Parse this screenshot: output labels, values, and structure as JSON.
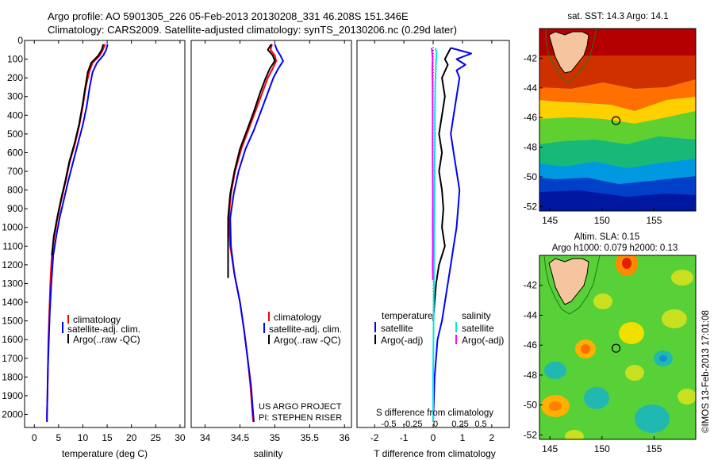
{
  "title_line1": "Argo profile: AO 5901305_226 05-Feb-2013 20130208_331 46.208S 151.346E",
  "title_line2": "Climatology: CARS2009. Satellite-adjusted climatology: synTS_20130206.nc (0.29d later)",
  "credit_line1": "US ARGO PROJECT",
  "credit_line2": "PI: STEPHEN RISER",
  "side_stamp": "©IMOS 13-Feb-2013 17:01:08",
  "colors": {
    "climatology": "#ff0000",
    "satellite": "#0000ff",
    "argo": "#000000",
    "sat_cyan": "#00e5e5",
    "argo_mag": "#ff00ff",
    "land": "#f4c59e"
  },
  "chart_data": [
    {
      "type": "line",
      "xlabel": "temperature (deg C)",
      "xlim": [
        -2,
        31
      ],
      "xticks": [
        0,
        5,
        10,
        15,
        20,
        25,
        30
      ],
      "ylim": [
        2070,
        0
      ],
      "yticks": [
        0,
        100,
        200,
        300,
        400,
        500,
        600,
        700,
        800,
        900,
        1000,
        1100,
        1200,
        1300,
        1400,
        1500,
        1600,
        1700,
        1800,
        1900,
        2000
      ],
      "legend": [
        "climatology",
        "satellite-adj. clim.",
        "Argo(..raw -QC)"
      ],
      "series": [
        {
          "name": "climatology",
          "color": "#ff0000",
          "x": [
            14.6,
            14.1,
            13.5,
            12.0,
            11.3,
            10.6,
            10.0,
            9.3,
            8.4,
            7.3,
            6.5,
            5.6,
            4.8,
            4.1,
            3.6,
            3.3,
            3.1,
            2.9,
            2.8,
            2.7,
            2.6,
            2.6
          ],
          "y": [
            20,
            50,
            80,
            120,
            170,
            250,
            350,
            450,
            550,
            650,
            750,
            850,
            950,
            1050,
            1150,
            1300,
            1450,
            1600,
            1750,
            1900,
            2000,
            2040
          ]
        },
        {
          "name": "satellite-adj. clim.",
          "color": "#0000ff",
          "x": [
            15.1,
            14.8,
            14.2,
            12.9,
            12.0,
            11.4,
            10.8,
            10.0,
            9.0,
            8.0,
            7.0,
            6.1,
            5.2,
            4.5,
            3.9,
            3.5,
            3.2,
            3.0,
            2.8,
            2.7,
            2.6,
            2.6
          ],
          "y": [
            20,
            50,
            80,
            120,
            170,
            250,
            350,
            450,
            550,
            650,
            750,
            850,
            950,
            1050,
            1150,
            1300,
            1450,
            1600,
            1750,
            1900,
            2000,
            2040
          ]
        },
        {
          "name": "Argo(..raw -QC)",
          "color": "#000000",
          "x": [
            14.2,
            13.9,
            13.2,
            11.7,
            11.0,
            10.5,
            9.9,
            9.2,
            8.3,
            7.2,
            6.4,
            5.5,
            4.7,
            4.0,
            3.6
          ],
          "y": [
            20,
            50,
            80,
            120,
            170,
            250,
            350,
            450,
            550,
            650,
            750,
            850,
            950,
            1050,
            1150
          ]
        }
      ]
    },
    {
      "type": "line",
      "xlabel": "salinity",
      "xlim": [
        33.8,
        36.1
      ],
      "xticks": [
        34,
        34.5,
        35,
        35.5,
        36
      ],
      "ylim": [
        2070,
        0
      ],
      "legend": [
        "climatology",
        "satellite-adj. clim.",
        "Argo(..raw -QC)"
      ],
      "series": [
        {
          "name": "climatology",
          "color": "#ff0000",
          "x": [
            34.96,
            34.94,
            35.0,
            35.02,
            34.97,
            34.9,
            34.82,
            34.72,
            34.62,
            34.52,
            34.43,
            34.37,
            34.34,
            34.36,
            34.42,
            34.5,
            34.56,
            34.61,
            34.65,
            34.68,
            34.69
          ],
          "y": [
            20,
            50,
            80,
            110,
            150,
            200,
            280,
            380,
            480,
            580,
            700,
            820,
            950,
            1100,
            1250,
            1400,
            1550,
            1700,
            1850,
            2000,
            2040
          ]
        },
        {
          "name": "satellite-adj. clim.",
          "color": "#0000ff",
          "x": [
            35.0,
            35.03,
            35.08,
            35.12,
            35.05,
            34.98,
            34.9,
            34.8,
            34.7,
            34.58,
            34.48,
            34.41,
            34.36,
            34.37,
            34.42,
            34.5,
            34.56,
            34.61,
            34.66,
            34.69,
            34.7
          ],
          "y": [
            20,
            50,
            80,
            110,
            150,
            200,
            280,
            380,
            480,
            580,
            700,
            820,
            950,
            1100,
            1250,
            1400,
            1550,
            1700,
            1850,
            2000,
            2040
          ]
        },
        {
          "name": "Argo(..raw -QC)",
          "color": "#000000",
          "x": [
            34.95,
            34.9,
            34.97,
            35.0,
            34.93,
            34.87,
            34.79,
            34.7,
            34.6,
            34.5,
            34.42,
            34.36,
            34.33,
            34.33
          ],
          "y": [
            20,
            50,
            80,
            110,
            150,
            200,
            280,
            380,
            480,
            580,
            700,
            820,
            950,
            1270
          ]
        }
      ]
    },
    {
      "type": "line",
      "xlabel": "T difference from climatology",
      "xlabel_top": "S difference from climatology",
      "xlim": [
        -2.6,
        2.6
      ],
      "xticks": [
        -2,
        -1,
        0,
        1,
        2
      ],
      "xticks_top": [
        "-0.5",
        "-0.25",
        "0",
        "0.25",
        "0.5"
      ],
      "ylim": [
        2070,
        0
      ],
      "legend_left_title": "temperature",
      "legend_right_title": "salinity",
      "legend_left": [
        "satellite",
        "Argo(-adj)"
      ],
      "legend_right": [
        "satellite",
        "Argo(-adj)"
      ],
      "series": [
        {
          "name": "T satellite",
          "color": "#0000ff",
          "x": [
            0.6,
            1.3,
            0.8,
            1.1,
            0.8,
            0.9,
            0.8,
            0.7,
            0.6,
            0.7,
            0.8,
            0.9,
            0.85,
            0.8,
            0.7,
            0.6,
            0.5,
            0.4,
            0.3,
            0.15,
            0.05,
            0.0
          ],
          "y": [
            40,
            70,
            100,
            130,
            160,
            200,
            300,
            400,
            500,
            600,
            700,
            800,
            900,
            1000,
            1100,
            1200,
            1300,
            1400,
            1500,
            1600,
            1800,
            2040
          ]
        },
        {
          "name": "T Argo(-adj)",
          "color": "#000000",
          "x": [
            0.6,
            0.5,
            0.4,
            0.5,
            0.3,
            0.4,
            0.3,
            0.2,
            0.3,
            0.2,
            0.3,
            0.35,
            0.3,
            0.4,
            0.2,
            0.1,
            0.05,
            0.0
          ],
          "y": [
            40,
            70,
            100,
            130,
            200,
            300,
            400,
            500,
            600,
            700,
            800,
            900,
            1000,
            1100,
            1200,
            1300,
            1400,
            1500
          ]
        },
        {
          "name": "S satellite",
          "color": "#00e5e5",
          "x": [
            0.08,
            0.12,
            0.1,
            0.09,
            0.07,
            0.06,
            0.06,
            0.05,
            0.05,
            0.04,
            0.03,
            0.02,
            0.01,
            0.0,
            0.0
          ],
          "y": [
            40,
            70,
            100,
            150,
            250,
            400,
            550,
            700,
            850,
            1000,
            1200,
            1400,
            1600,
            1800,
            2040
          ]
        },
        {
          "name": "S Argo(-adj)",
          "color": "#ff00ff",
          "x": [
            -0.05,
            -0.03,
            -0.02,
            -0.03,
            -0.02,
            -0.015,
            -0.02,
            -0.015,
            -0.01,
            -0.015,
            -0.01,
            -0.02,
            -0.01
          ],
          "y": [
            40,
            70,
            100,
            150,
            250,
            400,
            550,
            700,
            850,
            1000,
            1100,
            1200,
            1280
          ]
        }
      ]
    },
    {
      "type": "heatmap",
      "title": "sat. SST: 14.3 Argo: 14.1",
      "xlim": [
        144,
        159
      ],
      "ylim": [
        -52.3,
        -40
      ],
      "xticks": [
        145,
        150,
        155
      ],
      "yticks": [
        -42,
        -44,
        -46,
        -48,
        -50,
        -52
      ],
      "argo_position": [
        151.35,
        -46.21
      ]
    },
    {
      "type": "heatmap",
      "title_line1": "Altim. SLA: 0.15",
      "title_line2": "Argo h1000: 0.079 h2000: 0.13",
      "xlim": [
        144,
        159
      ],
      "ylim": [
        -52.3,
        -40
      ],
      "xticks": [
        145,
        150,
        155
      ],
      "yticks": [
        -42,
        -44,
        -46,
        -48,
        -50,
        -52
      ],
      "argo_position": [
        151.35,
        -46.21
      ]
    }
  ]
}
